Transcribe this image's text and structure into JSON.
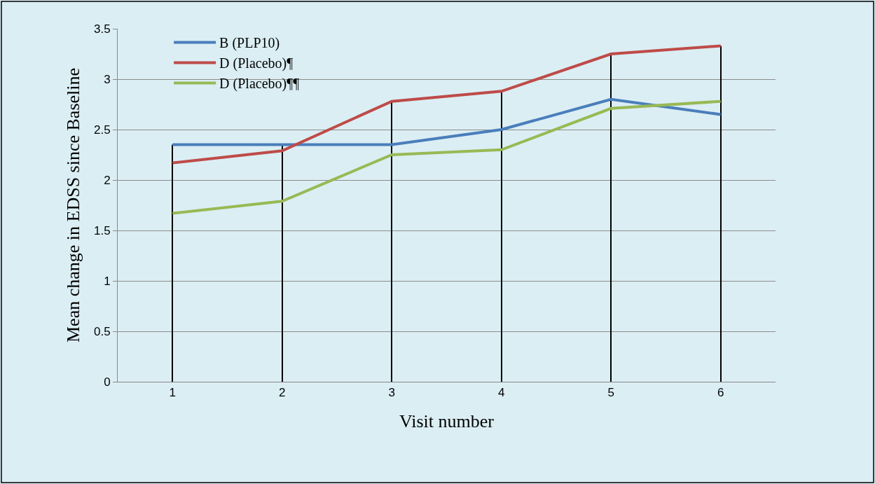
{
  "chart_data": {
    "type": "line",
    "xlabel": "Visit number",
    "ylabel": "Mean change in EDSS since Baseline",
    "categories": [
      "1",
      "2",
      "3",
      "4",
      "5",
      "6"
    ],
    "series": [
      {
        "name": "B (PLP10)",
        "color": "#4a7ebb",
        "values": [
          2.35,
          2.35,
          2.35,
          2.5,
          2.8,
          2.65
        ]
      },
      {
        "name": "D (Placebo)¶",
        "color": "#be4b48",
        "values": [
          2.17,
          2.29,
          2.78,
          2.88,
          3.25,
          3.33
        ]
      },
      {
        "name": "D (Placebo)¶¶",
        "color": "#98b954",
        "values": [
          1.67,
          1.79,
          2.25,
          2.3,
          2.71,
          2.78
        ]
      },
      {
        "type": "bar",
        "color": "#000000",
        "values": [
          2.35,
          2.35,
          2.78,
          2.88,
          3.25,
          3.33
        ]
      }
    ],
    "ylim": [
      0,
      3.5
    ],
    "yticks": [
      0,
      0.5,
      1,
      1.5,
      2,
      2.5,
      3,
      3.5
    ],
    "grid": "y",
    "legend": "top left",
    "marker": "none",
    "line_style": "solid"
  }
}
